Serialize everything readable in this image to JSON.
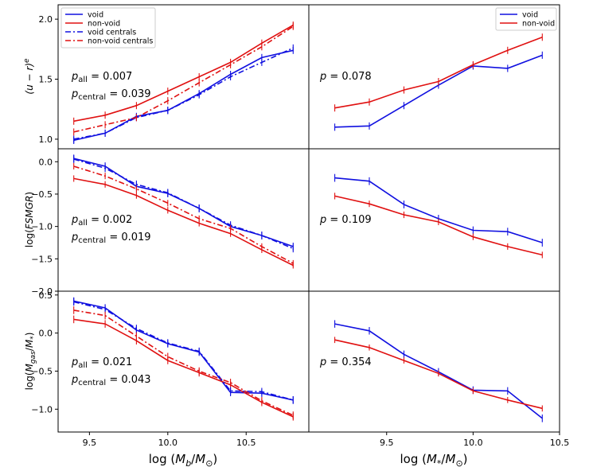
{
  "chart_data": {
    "type": "line",
    "colors": {
      "void": "#1010e0",
      "nonvoid": "#e01010",
      "frame": "#000000"
    },
    "columns": [
      {
        "xlabel": "log  (M_b/M_⊙)",
        "xlim": [
          9.3,
          10.9
        ],
        "xticks": [
          9.5,
          10.0,
          10.5
        ],
        "xtick_labels": [
          "9.5",
          "10.0",
          "10.5"
        ]
      },
      {
        "xlabel": "log  (M_*/M_⊙)",
        "xlim": [
          9.05,
          10.5
        ],
        "xticks": [
          9.5,
          10.0,
          10.5
        ],
        "xtick_labels": [
          "9.5",
          "10.0",
          "10.5"
        ]
      }
    ],
    "rows": [
      {
        "ylabel": "(u − r)^e",
        "ylim": [
          0.92,
          2.12
        ],
        "yticks": [
          1.0,
          1.5,
          2.0
        ],
        "ytick_labels": [
          "1.0",
          "1.5",
          "2.0"
        ]
      },
      {
        "ylabel": "log(FSMGR)",
        "ylim": [
          -2.0,
          0.2
        ],
        "yticks": [
          0.0,
          -0.5,
          -1.0,
          -1.5,
          -2.0
        ],
        "ytick_labels": [
          "0.0",
          "−0.5",
          "−1.0",
          "−1.5",
          "−2.0"
        ]
      },
      {
        "ylabel": "log(M_gas/M_*)",
        "ylim": [
          -1.3,
          0.55
        ],
        "yticks": [
          0.5,
          0.0,
          -0.5,
          -1.0
        ],
        "ytick_labels": [
          "0.5",
          "0.0",
          "−0.5",
          "−1.0"
        ]
      }
    ],
    "panels": [
      {
        "row": 0,
        "col": 0,
        "annotations": [
          {
            "label": "p",
            "sub": "all",
            "text": " = 0.007"
          },
          {
            "label": "p",
            "sub": "central",
            "text": " = 0.039"
          }
        ],
        "legend": {
          "position": "top-left",
          "entries": [
            {
              "label": "void",
              "series": "void",
              "dash": "solid"
            },
            {
              "label": "non-void",
              "series": "nonvoid",
              "dash": "solid"
            },
            {
              "label": "void centrals",
              "series": "void",
              "dash": "dashdot"
            },
            {
              "label": "non-void centrals",
              "series": "nonvoid",
              "dash": "dashdot"
            }
          ]
        },
        "series": [
          {
            "name": "void",
            "color": "void",
            "dash": "solid",
            "err": 0.03,
            "x": [
              9.4,
              9.6,
              9.8,
              10.0,
              10.2,
              10.4,
              10.6,
              10.8
            ],
            "y": [
              0.99,
              1.05,
              1.19,
              1.24,
              1.38,
              1.54,
              1.68,
              1.74
            ]
          },
          {
            "name": "non-void",
            "color": "nonvoid",
            "dash": "solid",
            "err": 0.03,
            "x": [
              9.4,
              9.6,
              9.8,
              10.0,
              10.2,
              10.4,
              10.6,
              10.8
            ],
            "y": [
              1.15,
              1.2,
              1.28,
              1.4,
              1.52,
              1.64,
              1.8,
              1.95
            ]
          },
          {
            "name": "void centrals",
            "color": "void",
            "dash": "dashdot",
            "err": 0.03,
            "x": [
              9.4,
              9.6,
              9.8,
              10.0,
              10.2,
              10.4,
              10.6,
              10.8
            ],
            "y": [
              1.0,
              1.05,
              1.18,
              1.24,
              1.37,
              1.52,
              1.64,
              1.76
            ]
          },
          {
            "name": "non-void centrals",
            "color": "nonvoid",
            "dash": "dashdot",
            "err": 0.03,
            "x": [
              9.4,
              9.6,
              9.8,
              10.0,
              10.2,
              10.4,
              10.6,
              10.8
            ],
            "y": [
              1.06,
              1.12,
              1.18,
              1.32,
              1.47,
              1.62,
              1.77,
              1.94
            ]
          }
        ]
      },
      {
        "row": 0,
        "col": 1,
        "annotations": [
          {
            "label": "p",
            "sub": "",
            "text": " = 0.078"
          }
        ],
        "legend": {
          "position": "top-right",
          "entries": [
            {
              "label": "void",
              "series": "void",
              "dash": "solid"
            },
            {
              "label": "non-void",
              "series": "nonvoid",
              "dash": "solid"
            }
          ]
        },
        "series": [
          {
            "name": "void",
            "color": "void",
            "dash": "solid",
            "err": 0.03,
            "x": [
              9.2,
              9.4,
              9.6,
              9.8,
              10.0,
              10.2,
              10.4
            ],
            "y": [
              1.1,
              1.11,
              1.28,
              1.45,
              1.61,
              1.59,
              1.7
            ]
          },
          {
            "name": "non-void",
            "color": "nonvoid",
            "dash": "solid",
            "err": 0.03,
            "x": [
              9.2,
              9.4,
              9.6,
              9.8,
              10.0,
              10.2,
              10.4
            ],
            "y": [
              1.26,
              1.31,
              1.41,
              1.48,
              1.62,
              1.74,
              1.85
            ]
          }
        ]
      },
      {
        "row": 1,
        "col": 0,
        "annotations": [
          {
            "label": "p",
            "sub": "all",
            "text": " = 0.002"
          },
          {
            "label": "p",
            "sub": "central",
            "text": " = 0.019"
          }
        ],
        "series": [
          {
            "name": "void",
            "color": "void",
            "dash": "solid",
            "err": 0.06,
            "x": [
              9.4,
              9.6,
              9.8,
              10.0,
              10.2,
              10.4,
              10.6,
              10.8
            ],
            "y": [
              0.05,
              -0.07,
              -0.38,
              -0.49,
              -0.72,
              -1.0,
              -1.14,
              -1.31
            ]
          },
          {
            "name": "non-void",
            "color": "nonvoid",
            "dash": "solid",
            "err": 0.05,
            "x": [
              9.4,
              9.6,
              9.8,
              10.0,
              10.2,
              10.4,
              10.6,
              10.8
            ],
            "y": [
              -0.26,
              -0.35,
              -0.52,
              -0.75,
              -0.95,
              -1.11,
              -1.36,
              -1.6
            ]
          },
          {
            "name": "void centrals",
            "color": "void",
            "dash": "dashdot",
            "err": 0.06,
            "x": [
              9.4,
              9.6,
              9.8,
              10.0,
              10.2,
              10.4,
              10.6,
              10.8
            ],
            "y": [
              0.04,
              -0.1,
              -0.35,
              -0.48,
              -0.72,
              -0.98,
              -1.14,
              -1.34
            ]
          },
          {
            "name": "non-void centrals",
            "color": "nonvoid",
            "dash": "dashdot",
            "err": 0.05,
            "x": [
              9.4,
              9.6,
              9.8,
              10.0,
              10.2,
              10.4,
              10.6,
              10.8
            ],
            "y": [
              -0.07,
              -0.22,
              -0.42,
              -0.64,
              -0.88,
              -1.03,
              -1.31,
              -1.57
            ]
          }
        ]
      },
      {
        "row": 1,
        "col": 1,
        "annotations": [
          {
            "label": "p",
            "sub": "",
            "text": " = 0.109"
          }
        ],
        "series": [
          {
            "name": "void",
            "color": "void",
            "dash": "solid",
            "err": 0.06,
            "x": [
              9.2,
              9.4,
              9.6,
              9.8,
              10.0,
              10.2,
              10.4
            ],
            "y": [
              -0.25,
              -0.3,
              -0.66,
              -0.88,
              -1.06,
              -1.08,
              -1.25
            ]
          },
          {
            "name": "non-void",
            "color": "nonvoid",
            "dash": "solid",
            "err": 0.05,
            "x": [
              9.2,
              9.4,
              9.6,
              9.8,
              10.0,
              10.2,
              10.4
            ],
            "y": [
              -0.53,
              -0.65,
              -0.82,
              -0.93,
              -1.16,
              -1.31,
              -1.44
            ]
          }
        ]
      },
      {
        "row": 2,
        "col": 0,
        "annotations": [
          {
            "label": "p",
            "sub": "all",
            "text": " = 0.021"
          },
          {
            "label": "p",
            "sub": "central",
            "text": " = 0.043"
          }
        ],
        "series": [
          {
            "name": "void",
            "color": "void",
            "dash": "solid",
            "err": 0.05,
            "x": [
              9.4,
              9.6,
              9.8,
              10.0,
              10.2,
              10.4,
              10.6,
              10.8
            ],
            "y": [
              0.42,
              0.33,
              0.04,
              -0.14,
              -0.25,
              -0.78,
              -0.79,
              -0.88
            ]
          },
          {
            "name": "non-void",
            "color": "nonvoid",
            "dash": "solid",
            "err": 0.05,
            "x": [
              9.4,
              9.6,
              9.8,
              10.0,
              10.2,
              10.4,
              10.6,
              10.8
            ],
            "y": [
              0.18,
              0.12,
              -0.1,
              -0.36,
              -0.52,
              -0.68,
              -0.91,
              -1.1
            ]
          },
          {
            "name": "void centrals",
            "color": "void",
            "dash": "dashdot",
            "err": 0.05,
            "x": [
              9.4,
              9.6,
              9.8,
              10.0,
              10.2,
              10.4,
              10.6,
              10.8
            ],
            "y": [
              0.41,
              0.31,
              0.06,
              -0.13,
              -0.24,
              -0.76,
              -0.77,
              -0.88
            ]
          },
          {
            "name": "non-void centrals",
            "color": "nonvoid",
            "dash": "dashdot",
            "err": 0.05,
            "x": [
              9.4,
              9.6,
              9.8,
              10.0,
              10.2,
              10.4,
              10.6,
              10.8
            ],
            "y": [
              0.3,
              0.23,
              -0.04,
              -0.31,
              -0.5,
              -0.65,
              -0.89,
              -1.08
            ]
          }
        ]
      },
      {
        "row": 2,
        "col": 1,
        "annotations": [
          {
            "label": "p",
            "sub": "",
            "text": " = 0.354"
          }
        ],
        "series": [
          {
            "name": "void",
            "color": "void",
            "dash": "solid",
            "err": 0.05,
            "x": [
              9.2,
              9.4,
              9.6,
              9.8,
              10.0,
              10.2,
              10.4
            ],
            "y": [
              0.12,
              0.03,
              -0.28,
              -0.51,
              -0.75,
              -0.76,
              -1.12
            ]
          },
          {
            "name": "non-void",
            "color": "nonvoid",
            "dash": "solid",
            "err": 0.04,
            "x": [
              9.2,
              9.4,
              9.6,
              9.8,
              10.0,
              10.2,
              10.4
            ],
            "y": [
              -0.09,
              -0.19,
              -0.36,
              -0.53,
              -0.76,
              -0.88,
              -0.99
            ]
          }
        ]
      }
    ]
  }
}
